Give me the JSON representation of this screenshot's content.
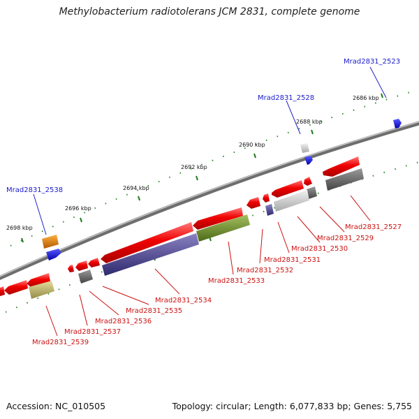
{
  "title": "Methylobacterium radiotolerans JCM 2831, complete genome",
  "footer": {
    "accession": "Accession: NC_010505",
    "topology": "Topology: circular; Length: 6,077,833 bp; Genes: 5,755"
  },
  "scale_labels": [
    "2686 kbp",
    "2688 kbp",
    "2690 kbp",
    "2692 kbp",
    "2694 kbp",
    "2696 kbp",
    "2698 kbp"
  ],
  "forward_genes": [
    "Mrad2831_2523",
    "Mrad2831_2528",
    "Mrad2831_2538"
  ],
  "reverse_genes": [
    "Mrad2831_2527",
    "Mrad2831_2529",
    "Mrad2831_2530",
    "Mrad2831_2531",
    "Mrad2831_2532",
    "Mrad2831_2533",
    "Mrad2831_2534",
    "Mrad2831_2535",
    "Mrad2831_2536",
    "Mrad2831_2537",
    "Mrad2831_2539"
  ],
  "colors": {
    "label_forward": "#1a1acc",
    "label_reverse": "#cc1111",
    "backbone": "#7f7f7f",
    "tick": "#2a8a2a"
  }
}
